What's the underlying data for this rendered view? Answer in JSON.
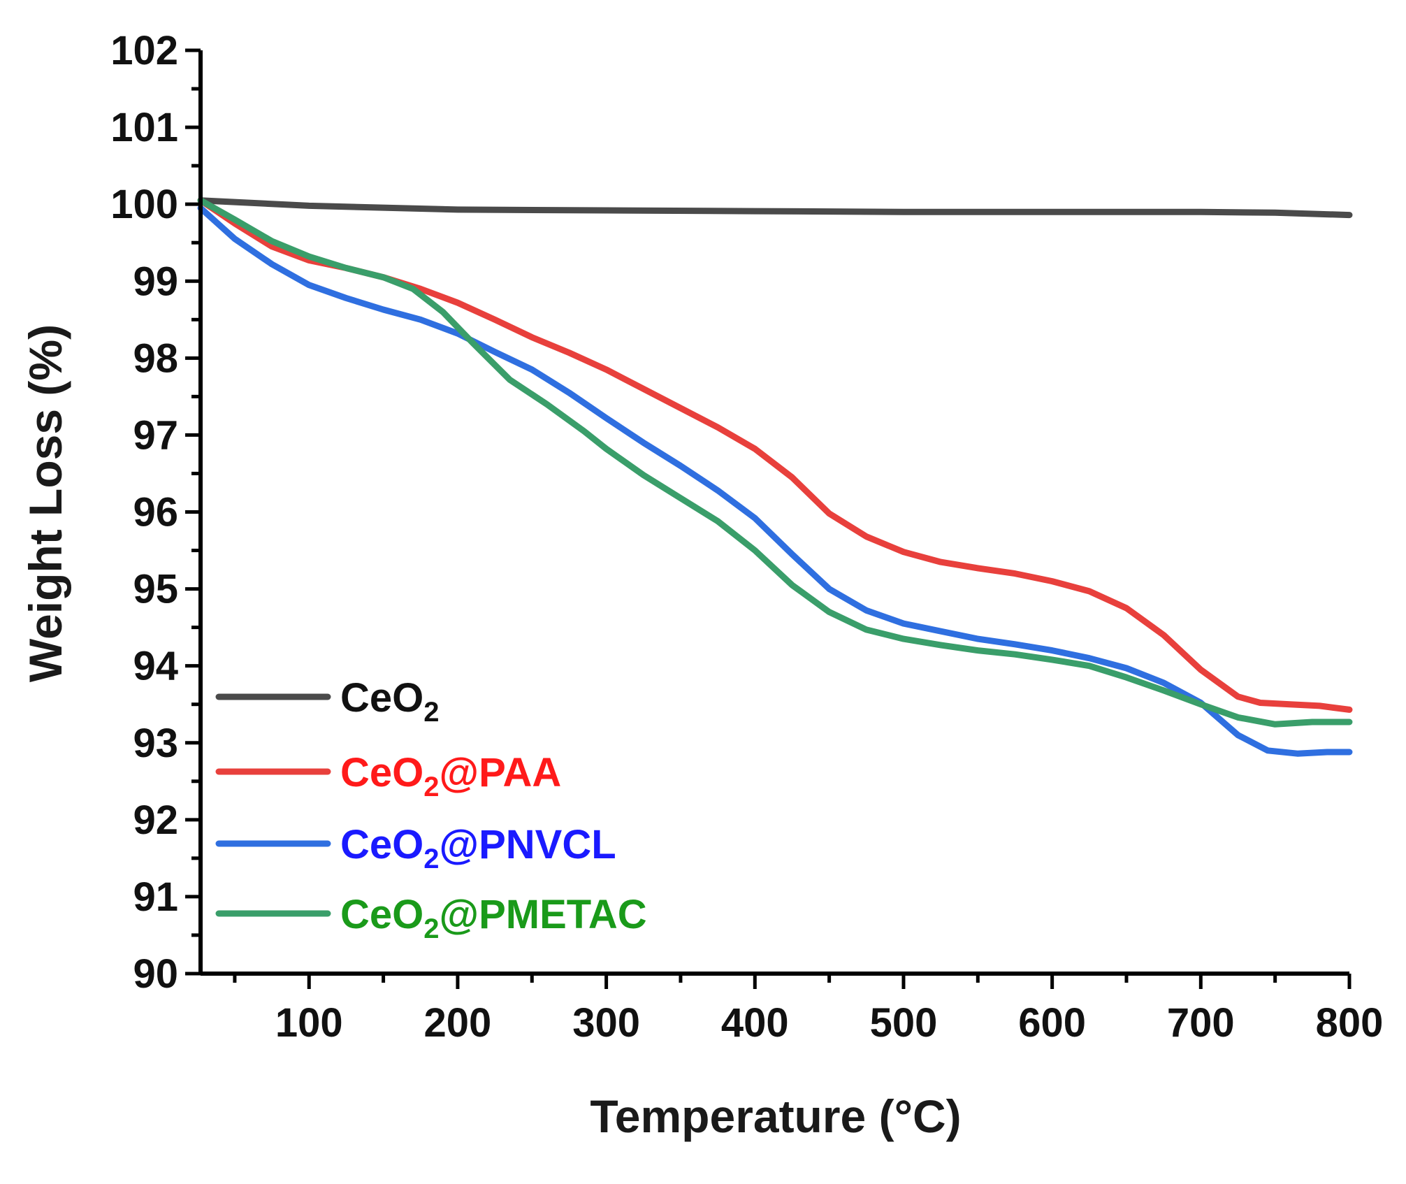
{
  "chart_data": {
    "type": "line",
    "title": "",
    "xlabel": "Temperature (°C)",
    "ylabel": "Weight Loss (%)",
    "xlim": [
      27,
      800
    ],
    "ylim": [
      90,
      102
    ],
    "x_ticks": [
      100,
      200,
      300,
      400,
      500,
      600,
      700,
      800
    ],
    "x_tick_labels": [
      "100",
      "200",
      "300",
      "400",
      "500",
      "600",
      "700",
      "800"
    ],
    "x_minor_ticks": [
      50,
      150,
      250,
      350,
      450,
      550,
      650,
      750
    ],
    "y_ticks": [
      90,
      91,
      92,
      93,
      94,
      95,
      96,
      97,
      98,
      99,
      100,
      101,
      102
    ],
    "y_tick_labels": [
      "90",
      "91",
      "92",
      "93",
      "94",
      "95",
      "96",
      "97",
      "98",
      "99",
      "100",
      "101",
      "102"
    ],
    "y_minor_ticks": [
      90.5,
      91.5,
      92.5,
      93.5,
      94.5,
      95.5,
      96.5,
      97.5,
      98.5,
      99.5,
      100.5,
      101.5
    ],
    "legend_position": "bottom-left",
    "series": [
      {
        "name": "CeO2",
        "label_main": "CeO",
        "label_sub": "2",
        "label_rest": "",
        "color": "#4a4a4a",
        "text_color": "#111111",
        "x": [
          27,
          100,
          200,
          300,
          400,
          500,
          600,
          700,
          750,
          800
        ],
        "y": [
          100.05,
          99.98,
          99.93,
          99.92,
          99.91,
          99.9,
          99.9,
          99.9,
          99.89,
          99.86
        ]
      },
      {
        "name": "CeO2@PAA",
        "label_main": "CeO",
        "label_sub": "2",
        "label_rest": "@PAA",
        "color": "#e8403c",
        "text_color": "#ff1a1a",
        "x": [
          27,
          50,
          75,
          100,
          125,
          150,
          175,
          200,
          225,
          250,
          275,
          300,
          325,
          350,
          375,
          400,
          425,
          450,
          475,
          500,
          525,
          550,
          575,
          600,
          625,
          650,
          675,
          700,
          725,
          740,
          760,
          780,
          800
        ],
        "y": [
          100.05,
          99.75,
          99.45,
          99.27,
          99.17,
          99.05,
          98.9,
          98.72,
          98.5,
          98.27,
          98.07,
          97.85,
          97.6,
          97.35,
          97.1,
          96.82,
          96.45,
          95.98,
          95.68,
          95.48,
          95.35,
          95.27,
          95.2,
          95.1,
          94.97,
          94.75,
          94.4,
          93.95,
          93.6,
          93.52,
          93.5,
          93.48,
          93.43
        ]
      },
      {
        "name": "CeO2@PNVCL",
        "label_main": "CeO",
        "label_sub": "2",
        "label_rest": "@PNVCL",
        "color": "#2f6fe0",
        "text_color": "#1a1aff",
        "x": [
          27,
          50,
          75,
          100,
          125,
          150,
          175,
          200,
          225,
          250,
          275,
          300,
          325,
          350,
          375,
          400,
          425,
          450,
          475,
          500,
          525,
          550,
          575,
          600,
          625,
          650,
          675,
          700,
          725,
          745,
          765,
          785,
          800
        ],
        "y": [
          99.95,
          99.55,
          99.22,
          98.95,
          98.78,
          98.63,
          98.5,
          98.32,
          98.08,
          97.85,
          97.55,
          97.22,
          96.9,
          96.6,
          96.28,
          95.92,
          95.45,
          95.0,
          94.72,
          94.55,
          94.45,
          94.35,
          94.28,
          94.2,
          94.1,
          93.97,
          93.78,
          93.52,
          93.1,
          92.9,
          92.86,
          92.88,
          92.88
        ]
      },
      {
        "name": "CeO2@PMETAC",
        "label_main": "CeO",
        "label_sub": "2",
        "label_rest": "@PMETAC",
        "color": "#3a9e6a",
        "text_color": "#1a9a1a",
        "x": [
          27,
          50,
          75,
          100,
          125,
          150,
          170,
          190,
          210,
          235,
          260,
          285,
          300,
          325,
          350,
          375,
          400,
          425,
          450,
          475,
          500,
          525,
          550,
          575,
          600,
          625,
          650,
          675,
          700,
          725,
          750,
          775,
          800
        ],
        "y": [
          100.05,
          99.8,
          99.52,
          99.32,
          99.17,
          99.05,
          98.9,
          98.6,
          98.2,
          97.72,
          97.4,
          97.05,
          96.82,
          96.48,
          96.18,
          95.88,
          95.5,
          95.05,
          94.7,
          94.47,
          94.35,
          94.27,
          94.2,
          94.15,
          94.08,
          94.0,
          93.85,
          93.68,
          93.5,
          93.33,
          93.24,
          93.27,
          93.27
        ]
      }
    ]
  }
}
